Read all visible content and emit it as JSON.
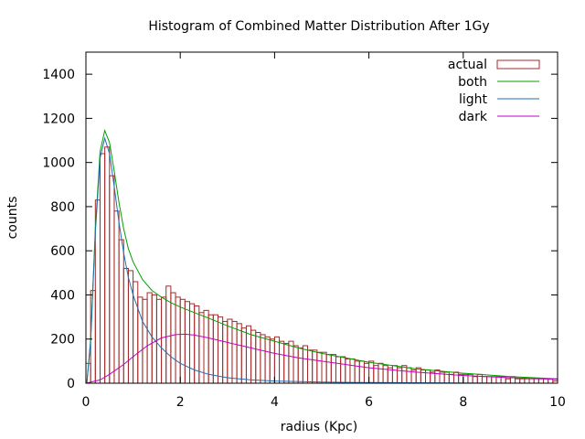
{
  "chart_data": {
    "type": "bar",
    "title": "Histogram of Combined Matter Distribution After 1Gy",
    "xlabel": "radius (Kpc)",
    "ylabel": "counts",
    "xlim": [
      0,
      10
    ],
    "ylim": [
      0,
      1500
    ],
    "x_ticks": [
      0,
      2,
      4,
      6,
      8,
      10
    ],
    "y_ticks": [
      0,
      200,
      400,
      600,
      800,
      1000,
      1200,
      1400
    ],
    "grid": false,
    "legend_position": "top-right",
    "bin_width": 0.1,
    "series": [
      {
        "name": "actual",
        "kind": "histogram",
        "color": "#a52a2a",
        "x": [
          0.05,
          0.15,
          0.25,
          0.35,
          0.45,
          0.55,
          0.65,
          0.75,
          0.85,
          0.95,
          1.05,
          1.15,
          1.25,
          1.35,
          1.45,
          1.55,
          1.65,
          1.75,
          1.85,
          1.95,
          2.05,
          2.15,
          2.25,
          2.35,
          2.45,
          2.55,
          2.65,
          2.75,
          2.85,
          2.95,
          3.05,
          3.15,
          3.25,
          3.35,
          3.45,
          3.55,
          3.65,
          3.75,
          3.85,
          3.95,
          4.05,
          4.15,
          4.25,
          4.35,
          4.45,
          4.55,
          4.65,
          4.75,
          4.85,
          4.95,
          5.05,
          5.15,
          5.25,
          5.35,
          5.45,
          5.55,
          5.65,
          5.75,
          5.85,
          5.95,
          6.05,
          6.15,
          6.25,
          6.35,
          6.45,
          6.55,
          6.65,
          6.75,
          6.85,
          6.95,
          7.05,
          7.15,
          7.25,
          7.35,
          7.45,
          7.55,
          7.65,
          7.75,
          7.85,
          7.95,
          8.05,
          8.15,
          8.25,
          8.35,
          8.45,
          8.55,
          8.65,
          8.75,
          8.85,
          8.95,
          9.05,
          9.15,
          9.25,
          9.35,
          9.45,
          9.55,
          9.65,
          9.75,
          9.85,
          9.95
        ],
        "values": [
          90,
          420,
          830,
          1040,
          1070,
          940,
          780,
          650,
          520,
          510,
          460,
          390,
          380,
          410,
          400,
          380,
          390,
          440,
          410,
          390,
          380,
          370,
          360,
          350,
          320,
          330,
          310,
          310,
          300,
          280,
          290,
          280,
          270,
          250,
          260,
          240,
          230,
          220,
          210,
          200,
          210,
          190,
          180,
          190,
          170,
          160,
          170,
          150,
          150,
          140,
          140,
          130,
          130,
          120,
          120,
          110,
          110,
          100,
          100,
          90,
          100,
          80,
          90,
          80,
          70,
          80,
          70,
          80,
          70,
          60,
          70,
          60,
          60,
          50,
          60,
          50,
          50,
          40,
          50,
          40,
          40,
          40,
          30,
          40,
          30,
          30,
          30,
          30,
          30,
          20,
          30,
          20,
          20,
          20,
          20,
          20,
          20,
          20,
          20,
          10
        ]
      },
      {
        "name": "both",
        "kind": "line",
        "color": "#00a000",
        "x": [
          0.02,
          0.1,
          0.2,
          0.3,
          0.4,
          0.5,
          0.6,
          0.7,
          0.8,
          0.9,
          1.0,
          1.2,
          1.4,
          1.6,
          1.8,
          2.0,
          2.3,
          2.6,
          3.0,
          3.5,
          4.0,
          4.5,
          5.0,
          5.5,
          6.0,
          7.0,
          8.0,
          9.0,
          10.0
        ],
        "values": [
          0,
          200,
          700,
          1050,
          1145,
          1090,
          960,
          820,
          700,
          610,
          550,
          470,
          420,
          390,
          365,
          345,
          320,
          295,
          260,
          220,
          190,
          160,
          135,
          115,
          95,
          65,
          45,
          30,
          20
        ]
      },
      {
        "name": "light",
        "kind": "line",
        "color": "#1e6eb4",
        "x": [
          0.02,
          0.1,
          0.2,
          0.3,
          0.4,
          0.5,
          0.6,
          0.7,
          0.8,
          0.9,
          1.0,
          1.2,
          1.4,
          1.6,
          1.8,
          2.0,
          2.3,
          2.6,
          3.0,
          3.5,
          4.0,
          5.0,
          6.0,
          8.0,
          10.0
        ],
        "values": [
          0,
          190,
          680,
          1020,
          1110,
          1040,
          890,
          730,
          590,
          480,
          400,
          280,
          210,
          160,
          120,
          90,
          60,
          40,
          25,
          15,
          10,
          5,
          3,
          1,
          0
        ]
      },
      {
        "name": "dark",
        "kind": "line",
        "color": "#c000c0",
        "x": [
          0.0,
          0.3,
          0.5,
          0.8,
          1.0,
          1.3,
          1.6,
          1.9,
          2.1,
          2.3,
          2.6,
          3.0,
          3.5,
          4.0,
          4.5,
          5.0,
          5.5,
          6.0,
          7.0,
          8.0,
          9.0,
          10.0
        ],
        "values": [
          0,
          15,
          40,
          85,
          120,
          170,
          205,
          220,
          222,
          218,
          205,
          185,
          160,
          135,
          115,
          100,
          85,
          70,
          50,
          35,
          25,
          18
        ]
      }
    ]
  }
}
